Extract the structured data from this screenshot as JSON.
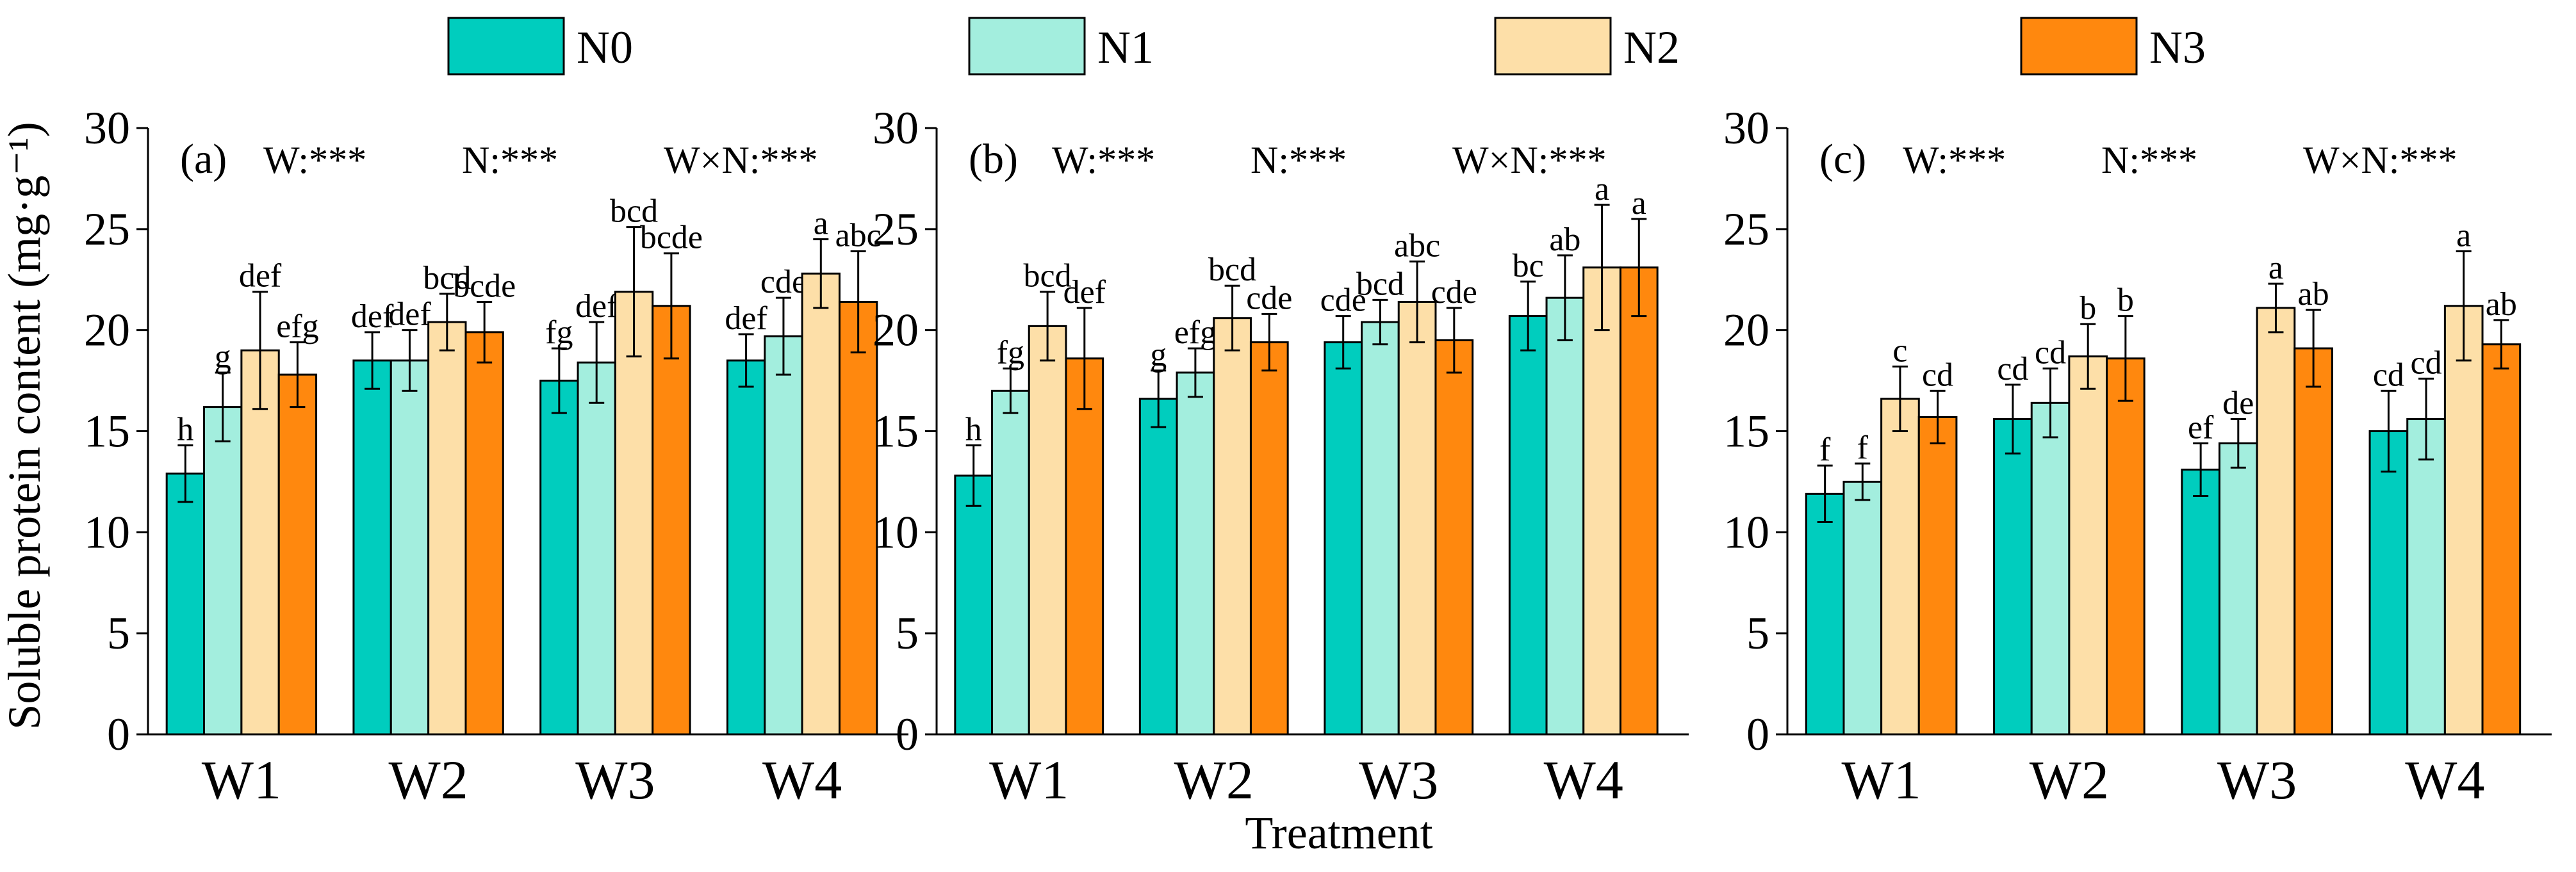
{
  "chart_data": [
    {
      "type": "bar",
      "panel_label": "(a)",
      "anova": [
        "W:***",
        "N:***",
        "W×N:***"
      ],
      "categories": [
        "W1",
        "W2",
        "W3",
        "W4"
      ],
      "ylim": [
        0,
        30
      ],
      "yticks": [
        "0",
        "5",
        "10",
        "15",
        "20",
        "25",
        "30"
      ],
      "series": [
        {
          "name": "N0",
          "values": [
            12.9,
            18.5,
            17.5,
            18.5
          ],
          "errors": [
            1.4,
            1.4,
            1.6,
            1.3
          ],
          "letters": [
            "h",
            "def",
            "fg",
            "def"
          ]
        },
        {
          "name": "N1",
          "values": [
            16.2,
            18.5,
            18.4,
            19.7
          ],
          "errors": [
            1.7,
            1.5,
            2.0,
            1.9
          ],
          "letters": [
            "g",
            "def",
            "def",
            "cde"
          ]
        },
        {
          "name": "N2",
          "values": [
            19.0,
            20.4,
            21.9,
            22.8
          ],
          "errors": [
            2.9,
            1.4,
            3.2,
            1.7
          ],
          "letters": [
            "def",
            "bcd",
            "bcd",
            "a"
          ]
        },
        {
          "name": "N3",
          "values": [
            17.8,
            19.9,
            21.2,
            21.4
          ],
          "errors": [
            1.6,
            1.5,
            2.6,
            2.5
          ],
          "letters": [
            "efg",
            "bcde",
            "bcde",
            "abc"
          ]
        }
      ]
    },
    {
      "type": "bar",
      "panel_label": "(b)",
      "anova": [
        "W:***",
        "N:***",
        "W×N:***"
      ],
      "categories": [
        "W1",
        "W2",
        "W3",
        "W4"
      ],
      "ylim": [
        0,
        30
      ],
      "yticks": [
        "0",
        "5",
        "10",
        "15",
        "20",
        "25",
        "30"
      ],
      "series": [
        {
          "name": "N0",
          "values": [
            12.8,
            16.6,
            19.4,
            20.7
          ],
          "errors": [
            1.5,
            1.4,
            1.3,
            1.7
          ],
          "letters": [
            "h",
            "g",
            "cde",
            "bc"
          ]
        },
        {
          "name": "N1",
          "values": [
            17.0,
            17.9,
            20.4,
            21.6
          ],
          "errors": [
            1.1,
            1.2,
            1.1,
            2.1
          ],
          "letters": [
            "fg",
            "efg",
            "bcd",
            "ab"
          ]
        },
        {
          "name": "N2",
          "values": [
            20.2,
            20.6,
            21.4,
            23.1
          ],
          "errors": [
            1.7,
            1.6,
            2.0,
            3.1
          ],
          "letters": [
            "bcd",
            "bcd",
            "abc",
            "a"
          ]
        },
        {
          "name": "N3",
          "values": [
            18.6,
            19.4,
            19.5,
            23.1
          ],
          "errors": [
            2.5,
            1.4,
            1.6,
            2.4
          ],
          "letters": [
            "def",
            "cde",
            "cde",
            "a"
          ]
        }
      ]
    },
    {
      "type": "bar",
      "panel_label": "(c)",
      "anova": [
        "W:***",
        "N:***",
        "W×N:***"
      ],
      "categories": [
        "W1",
        "W2",
        "W3",
        "W4"
      ],
      "ylim": [
        0,
        30
      ],
      "yticks": [
        "0",
        "5",
        "10",
        "15",
        "20",
        "25",
        "30"
      ],
      "series": [
        {
          "name": "N0",
          "values": [
            11.9,
            15.6,
            13.1,
            15.0
          ],
          "errors": [
            1.4,
            1.7,
            1.3,
            2.0
          ],
          "letters": [
            "f",
            "cd",
            "ef",
            "cd"
          ]
        },
        {
          "name": "N1",
          "values": [
            12.5,
            16.4,
            14.4,
            15.6
          ],
          "errors": [
            0.9,
            1.7,
            1.2,
            2.0
          ],
          "letters": [
            "f",
            "cd",
            "de",
            "cd"
          ]
        },
        {
          "name": "N2",
          "values": [
            16.6,
            18.7,
            21.1,
            21.2
          ],
          "errors": [
            1.6,
            1.6,
            1.2,
            2.7
          ],
          "letters": [
            "c",
            "b",
            "a",
            "a"
          ]
        },
        {
          "name": "N3",
          "values": [
            15.7,
            18.6,
            19.1,
            19.3
          ],
          "errors": [
            1.3,
            2.1,
            1.9,
            1.2
          ],
          "letters": [
            "cd",
            "b",
            "ab",
            "ab"
          ]
        }
      ]
    }
  ],
  "legend": [
    {
      "name": "N0",
      "color": "#00CDBE"
    },
    {
      "name": "N1",
      "color": "#A3EEDE"
    },
    {
      "name": "N2",
      "color": "#FDDFA8"
    },
    {
      "name": "N3",
      "color": "#FF880E"
    }
  ],
  "ylabel": "Soluble protein content (mg·g⁻¹)",
  "xlabel": "Treatment"
}
